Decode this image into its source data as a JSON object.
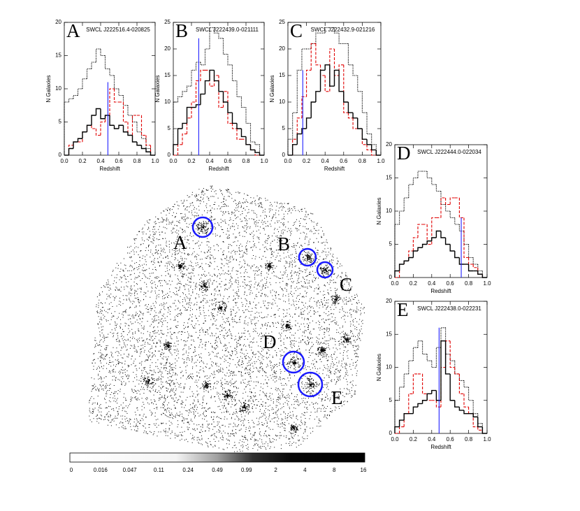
{
  "chart_data": [
    {
      "type": "histogram",
      "letter": "A",
      "title": "SWCL J222516.4-020825",
      "xlabel": "Redshift",
      "ylabel": "N Galaxies",
      "bins": [
        0,
        0.05,
        0.1,
        0.15,
        0.2,
        0.25,
        0.3,
        0.35,
        0.4,
        0.45,
        0.5,
        0.55,
        0.6,
        0.65,
        0.7,
        0.75,
        0.8,
        0.85,
        0.9,
        0.95,
        1
      ],
      "xlim": [
        0,
        1
      ],
      "ylim": [
        0,
        20
      ],
      "xticks": [
        {
          "value": 0,
          "label": "0.0"
        },
        0.2,
        0.4,
        0.6,
        0.8,
        {
          "value": 1,
          "label": "1.0"
        }
      ],
      "yticks": [
        0,
        5,
        10,
        15,
        20
      ],
      "series": [
        {
          "color": "#000000",
          "style": "dotted",
          "values": [
            8,
            8.5,
            9,
            10,
            11.5,
            13,
            14,
            16,
            15,
            13,
            12,
            10,
            9,
            7.5,
            6,
            5,
            3.5,
            2.5,
            1,
            0
          ]
        },
        {
          "color": "#e00000",
          "style": "dashed",
          "values": [
            0,
            1.5,
            2,
            2,
            3.5,
            4.5,
            4,
            3,
            5,
            6,
            10,
            8,
            8,
            5,
            3,
            6,
            6,
            3,
            1.5,
            0
          ]
        },
        {
          "color": "#000000",
          "style": "solid",
          "values": [
            0,
            1,
            2,
            2.5,
            3.5,
            4.5,
            6,
            7,
            5.5,
            6,
            4.5,
            4,
            4.5,
            3.5,
            3,
            2,
            1.5,
            1,
            0.5,
            0
          ]
        }
      ],
      "redshift_line": {
        "x": 0.48,
        "y": 11,
        "color": "#2020ff"
      }
    },
    {
      "type": "histogram",
      "letter": "B",
      "title": "SWCL J222439.0-021111",
      "xlabel": "Redshift",
      "ylabel": "N Galaxies",
      "bins": [
        0,
        0.05,
        0.1,
        0.15,
        0.2,
        0.25,
        0.3,
        0.35,
        0.4,
        0.45,
        0.5,
        0.55,
        0.6,
        0.65,
        0.7,
        0.75,
        0.8,
        0.85,
        0.9,
        0.95,
        1
      ],
      "xlim": [
        0,
        1
      ],
      "ylim": [
        0,
        25
      ],
      "xticks": [
        {
          "value": 0,
          "label": "0.0"
        },
        0.2,
        0.4,
        0.6,
        0.8,
        {
          "value": 1,
          "label": "1.0"
        }
      ],
      "yticks": [
        0,
        5,
        10,
        15,
        20,
        25
      ],
      "series": [
        {
          "color": "#000000",
          "style": "dotted",
          "values": [
            10,
            11,
            12,
            13,
            16,
            17.5,
            17,
            20,
            24,
            23,
            22,
            19,
            17,
            14,
            11,
            9,
            6,
            2.5,
            2,
            0
          ]
        },
        {
          "color": "#e00000",
          "style": "dashed",
          "values": [
            0,
            2,
            4,
            7,
            10,
            14,
            16,
            16,
            13,
            15,
            9,
            12,
            6,
            5,
            3,
            3,
            2,
            1,
            0,
            0
          ]
        },
        {
          "color": "#000000",
          "style": "solid",
          "values": [
            2,
            5,
            6,
            9,
            9,
            9.5,
            11.5,
            14,
            16,
            14,
            12,
            10,
            8,
            6,
            5,
            3.5,
            2,
            1,
            0.5,
            0
          ]
        }
      ],
      "redshift_line": {
        "x": 0.28,
        "y": 22,
        "color": "#2020ff"
      }
    },
    {
      "type": "histogram",
      "letter": "C",
      "title": "SWCL J222432.9-021216",
      "xlabel": "Redshift",
      "ylabel": "N Galaxies",
      "bins": [
        0,
        0.05,
        0.1,
        0.15,
        0.2,
        0.25,
        0.3,
        0.35,
        0.4,
        0.45,
        0.5,
        0.55,
        0.6,
        0.65,
        0.7,
        0.75,
        0.8,
        0.85,
        0.9,
        0.95,
        1
      ],
      "xlim": [
        0,
        1
      ],
      "ylim": [
        0,
        25
      ],
      "xticks": [
        {
          "value": 0,
          "label": "0.0"
        },
        0.2,
        0.4,
        0.6,
        0.8,
        {
          "value": 1,
          "label": "1.0"
        }
      ],
      "yticks": [
        0,
        5,
        10,
        15,
        20,
        25
      ],
      "series": [
        {
          "color": "#000000",
          "style": "dotted",
          "values": [
            3,
            8,
            16,
            20,
            20,
            21,
            23,
            23,
            24,
            24,
            23,
            21,
            21,
            17,
            15,
            12,
            8,
            4,
            2,
            0
          ]
        },
        {
          "color": "#e00000",
          "style": "dashed",
          "values": [
            0,
            3,
            7,
            11,
            16,
            21,
            17,
            15,
            12,
            20,
            15,
            17,
            8,
            7,
            5,
            5,
            2,
            1,
            0,
            0
          ]
        },
        {
          "color": "#000000",
          "style": "solid",
          "values": [
            0,
            2,
            4,
            5,
            7,
            10,
            12,
            16,
            17,
            13,
            16,
            12,
            10,
            8,
            7,
            5,
            3,
            2,
            1,
            0
          ]
        }
      ],
      "redshift_line": {
        "x": 0.16,
        "y": 16,
        "color": "#2020ff"
      }
    },
    {
      "type": "histogram",
      "letter": "D",
      "title": "SWCL J222444.0-022034",
      "xlabel": "Redshift",
      "ylabel": "N Galaxies",
      "bins": [
        0,
        0.05,
        0.1,
        0.15,
        0.2,
        0.25,
        0.3,
        0.35,
        0.4,
        0.45,
        0.5,
        0.55,
        0.6,
        0.65,
        0.7,
        0.75,
        0.8,
        0.85,
        0.9,
        0.95,
        1
      ],
      "xlim": [
        0,
        1
      ],
      "ylim": [
        0,
        20
      ],
      "xticks": [
        {
          "value": 0,
          "label": "0.0"
        },
        0.2,
        0.4,
        0.6,
        0.8,
        {
          "value": 1,
          "label": "1.0"
        }
      ],
      "yticks": [
        0,
        5,
        10,
        15,
        20
      ],
      "series": [
        {
          "color": "#000000",
          "style": "dotted",
          "values": [
            8,
            10,
            12,
            14,
            15,
            16,
            16,
            15,
            14,
            13,
            11,
            10,
            9,
            8,
            7,
            5,
            3,
            2,
            1,
            0
          ]
        },
        {
          "color": "#e00000",
          "style": "dashed",
          "values": [
            0,
            2,
            2.5,
            4,
            6,
            8,
            8,
            5,
            9,
            9,
            12,
            11,
            12,
            12,
            9,
            3,
            2,
            1.5,
            0.5,
            0
          ]
        },
        {
          "color": "#000000",
          "style": "solid",
          "values": [
            1,
            2,
            2.5,
            3,
            4,
            4.5,
            5,
            5.5,
            6,
            7,
            6,
            5,
            4,
            3,
            2,
            2,
            1,
            1,
            0.5,
            0
          ]
        }
      ],
      "redshift_line": {
        "x": 0.72,
        "y": 9,
        "color": "#2020ff"
      }
    },
    {
      "type": "histogram",
      "letter": "E",
      "title": "SWCL J222438.0-022231",
      "xlabel": "Redshift",
      "ylabel": "N Galaxies",
      "bins": [
        0,
        0.05,
        0.1,
        0.15,
        0.2,
        0.25,
        0.3,
        0.35,
        0.4,
        0.45,
        0.5,
        0.55,
        0.6,
        0.65,
        0.7,
        0.75,
        0.8,
        0.85,
        0.9,
        0.95,
        1
      ],
      "xlim": [
        0,
        1
      ],
      "ylim": [
        0,
        20
      ],
      "xticks": [
        {
          "value": 0,
          "label": "0.0"
        },
        0.2,
        0.4,
        0.6,
        0.8,
        {
          "value": 1,
          "label": "1.0"
        }
      ],
      "yticks": [
        0,
        5,
        10,
        15,
        20
      ],
      "series": [
        {
          "color": "#000000",
          "style": "dotted",
          "values": [
            5,
            7,
            9,
            11,
            13,
            14,
            12,
            11,
            10,
            13,
            16,
            12,
            11,
            9,
            8,
            7,
            5,
            3,
            1.5,
            0
          ]
        },
        {
          "color": "#e00000",
          "style": "dashed",
          "values": [
            0,
            1,
            3,
            6,
            9,
            9,
            6,
            5,
            5,
            4,
            10,
            14,
            10,
            9,
            6,
            4,
            3,
            1,
            0.5,
            0
          ]
        },
        {
          "color": "#000000",
          "style": "solid",
          "values": [
            1,
            2,
            3,
            3,
            4,
            4.5,
            5,
            6,
            6.5,
            5,
            14,
            9,
            5,
            4,
            3.5,
            3,
            3,
            2.5,
            1,
            0
          ]
        }
      ],
      "redshift_line": {
        "x": 0.48,
        "y": 16,
        "color": "#2020ff"
      }
    }
  ],
  "image": {
    "labels": [
      "A",
      "B",
      "C",
      "D",
      "E"
    ]
  },
  "colorbar": {
    "ticks": [
      0,
      0.016,
      0.047,
      0.11,
      0.24,
      0.49,
      0.99,
      2,
      4,
      8,
      16
    ]
  }
}
